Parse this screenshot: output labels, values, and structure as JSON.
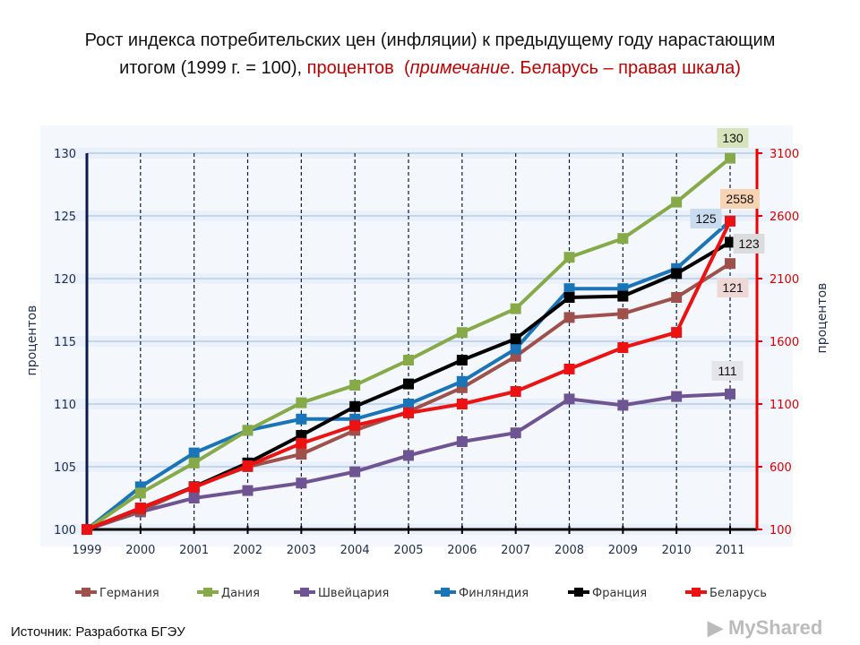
{
  "title": {
    "line1": "Рост индекса потребительских цен (инфляции) к предыдущему году нарастающим",
    "line2_a": "итогом (1999 г. = 100), ",
    "line2_b": "процентов",
    "line2_c": "(",
    "line2_d": "примечание",
    "line2_e": ". Беларусь – правая шкала)"
  },
  "source": "Источник: Разработка БГЭУ",
  "watermark": "MyShared",
  "chart_data": {
    "type": "line",
    "x": [
      "1999",
      "2000",
      "2001",
      "2002",
      "2003",
      "2004",
      "2005",
      "2006",
      "2007",
      "2008",
      "2009",
      "2010",
      "2011"
    ],
    "ylabel": "процентов",
    "y2label": "процентов",
    "ylim": [
      100,
      130
    ],
    "yticks": [
      "100",
      "105",
      "110",
      "115",
      "120",
      "125",
      "130"
    ],
    "y2lim": [
      100,
      3100
    ],
    "y2ticks": [
      "100",
      "600",
      "1100",
      "1600",
      "2100",
      "2600",
      "3100"
    ],
    "grid": true,
    "legend": "bottom",
    "series": [
      {
        "name": "Германия",
        "axis": "left",
        "color": "#a0504b",
        "values": [
          100,
          101.5,
          103.4,
          105,
          106,
          107.9,
          109.4,
          111.3,
          113.8,
          116.9,
          117.2,
          118.5,
          121.2
        ],
        "end_label": "121",
        "label_bg": "#eed8d6"
      },
      {
        "name": "Дания",
        "axis": "left",
        "color": "#86aa48",
        "values": [
          100,
          102.9,
          105.3,
          107.9,
          110.1,
          111.5,
          113.5,
          115.7,
          117.6,
          121.7,
          123.2,
          126.1,
          129.6
        ],
        "end_label": "130",
        "label_bg": "#d6e4bc"
      },
      {
        "name": "Швейцария",
        "axis": "left",
        "color": "#6f5493",
        "values": [
          100,
          101.4,
          102.5,
          103.1,
          103.7,
          104.6,
          105.9,
          107,
          107.7,
          110.4,
          109.9,
          110.6,
          110.8
        ],
        "end_label": "111",
        "label_bg": "#e4e4ea"
      },
      {
        "name": "Финляндия",
        "axis": "left",
        "color": "#1a74b8",
        "values": [
          100,
          103.4,
          106.1,
          107.9,
          108.8,
          108.8,
          110,
          111.8,
          114.4,
          119.2,
          119.2,
          120.8,
          124.6
        ],
        "end_label": "125",
        "label_bg": "#c9dcef"
      },
      {
        "name": "Франция",
        "axis": "left",
        "color": "#000000",
        "values": [
          100,
          101.7,
          103.4,
          105.3,
          107.5,
          109.8,
          111.6,
          113.5,
          115.2,
          118.5,
          118.6,
          120.4,
          122.9
        ],
        "end_label": "123",
        "label_bg": "#dcdcdc"
      },
      {
        "name": "Беларусь",
        "axis": "right",
        "color": "#ee1111",
        "values": [
          100,
          271,
          436,
          607,
          786,
          929,
          1029,
          1100,
          1200,
          1379,
          1550,
          1671,
          2558
        ],
        "end_label": "2558",
        "label_bg": "#f8d4b4"
      }
    ]
  }
}
